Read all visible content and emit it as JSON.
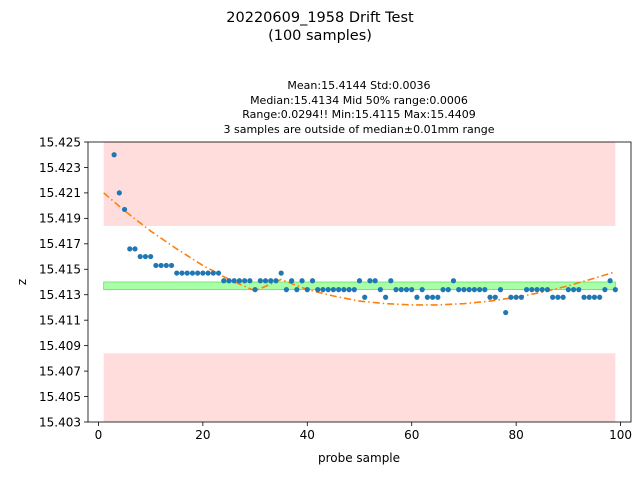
{
  "chart_data": {
    "type": "scatter",
    "title": "20220609_1958 Drift Test",
    "subtitle": "(100 samples)",
    "stats_lines": [
      "Mean:15.4144  Std:0.0036",
      "Median:15.4134  Mid 50% range:0.0006",
      "Range:0.0294!!  Min:15.4115  Max:15.4409",
      "3 samples are outside of median±0.01mm range"
    ],
    "xlabel": "probe sample",
    "ylabel": "z",
    "xlim": [
      -2,
      102
    ],
    "ylim": [
      15.403,
      15.425
    ],
    "xticks": [
      0,
      20,
      40,
      60,
      80,
      100
    ],
    "xtick_labels": [
      "0",
      "20",
      "40",
      "60",
      "80",
      "100"
    ],
    "yticks": [
      15.403,
      15.405,
      15.407,
      15.409,
      15.411,
      15.413,
      15.415,
      15.417,
      15.419,
      15.421,
      15.423,
      15.425
    ],
    "ytick_labels": [
      "15.403",
      "15.405",
      "15.407",
      "15.409",
      "15.411",
      "15.413",
      "15.415",
      "15.417",
      "15.419",
      "15.421",
      "15.423",
      "15.425"
    ],
    "grid": false,
    "bands": [
      {
        "kind": "outside-high",
        "x": [
          1,
          99
        ],
        "y": [
          15.4184,
          15.4252
        ],
        "color": "#ffdddd"
      },
      {
        "kind": "outside-low",
        "x": [
          1,
          99
        ],
        "y": [
          15.403,
          15.4084
        ],
        "color": "#ffdddd"
      },
      {
        "kind": "mid-50",
        "x": [
          1,
          99
        ],
        "y": [
          15.4134,
          15.414
        ],
        "color": "#a8ffa8",
        "edge_color": "#66dd66"
      }
    ],
    "points": {
      "color": "#1f77b4",
      "x": [
        3,
        4,
        5,
        6,
        7,
        8,
        9,
        10,
        11,
        12,
        13,
        14,
        15,
        16,
        17,
        18,
        19,
        20,
        21,
        22,
        23,
        24,
        25,
        26,
        27,
        28,
        29,
        30,
        31,
        32,
        33,
        34,
        35,
        36,
        37,
        38,
        39,
        40,
        41,
        42,
        43,
        44,
        45,
        46,
        47,
        48,
        49,
        50,
        51,
        52,
        53,
        54,
        55,
        56,
        57,
        58,
        59,
        60,
        61,
        62,
        63,
        64,
        65,
        66,
        67,
        68,
        69,
        70,
        71,
        72,
        73,
        74,
        75,
        76,
        77,
        78,
        79,
        80,
        81,
        82,
        83,
        84,
        85,
        86,
        87,
        88,
        89,
        90,
        91,
        92,
        93,
        94,
        95,
        96,
        97,
        98,
        99
      ],
      "y": [
        15.424,
        15.421,
        15.4197,
        15.4166,
        15.4166,
        15.416,
        15.416,
        15.416,
        15.4153,
        15.4153,
        15.4153,
        15.4153,
        15.4147,
        15.4147,
        15.4147,
        15.4147,
        15.4147,
        15.4147,
        15.4147,
        15.4147,
        15.4147,
        15.4141,
        15.4141,
        15.4141,
        15.4141,
        15.4141,
        15.4141,
        15.4134,
        15.4141,
        15.4141,
        15.4141,
        15.4141,
        15.4147,
        15.4134,
        15.4141,
        15.4134,
        15.4141,
        15.4134,
        15.4141,
        15.4134,
        15.4134,
        15.4134,
        15.4134,
        15.4134,
        15.4134,
        15.4134,
        15.4134,
        15.4141,
        15.4128,
        15.4141,
        15.4141,
        15.4134,
        15.4128,
        15.4141,
        15.4134,
        15.4134,
        15.4134,
        15.4134,
        15.4128,
        15.4134,
        15.4128,
        15.4128,
        15.4128,
        15.4134,
        15.4134,
        15.4141,
        15.4134,
        15.4134,
        15.4134,
        15.4134,
        15.4134,
        15.4134,
        15.4128,
        15.4128,
        15.4134,
        15.4116,
        15.4128,
        15.4128,
        15.4128,
        15.4134,
        15.4134,
        15.4134,
        15.4134,
        15.4134,
        15.4128,
        15.4128,
        15.4128,
        15.4134,
        15.4134,
        15.4134,
        15.4128,
        15.4128,
        15.4128,
        15.4128,
        15.4134,
        15.4141,
        15.4134
      ]
    },
    "trend": {
      "color": "#ff7f0e",
      "style": "dash-dot",
      "x": [
        1,
        5,
        10,
        15,
        20,
        25,
        30,
        35,
        40,
        45,
        50,
        55,
        60,
        65,
        70,
        75,
        80,
        85,
        90,
        95,
        99
      ],
      "y": [
        15.421,
        15.4196,
        15.418,
        15.4166,
        15.4153,
        15.4142,
        15.4133,
        15.4142,
        15.4134,
        15.4129,
        15.4125,
        15.4123,
        15.4122,
        15.4122,
        15.4123,
        15.4125,
        15.4128,
        15.4132,
        15.4137,
        15.4143,
        15.4148
      ]
    }
  }
}
